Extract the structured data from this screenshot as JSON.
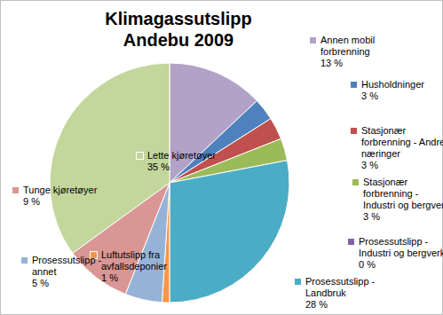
{
  "chart_data": {
    "type": "pie",
    "title": "Klimagassutslipp Andebu 2009",
    "categories": [
      "Annen mobil forbrenning",
      "Husholdninger",
      "Stasjonær forbrenning - Andre næringer",
      "Stasjonær forbrenning - Industri og bergverk",
      "Prosessutslipp - Industri og bergverk",
      "Prosessutslipp - Landbruk",
      "Luftutslipp fra avfallsdeponier",
      "Prosessutslipp - annet",
      "Tunge kjøretøyer",
      "Lette kjøretøyer"
    ],
    "values": [
      13,
      3,
      3,
      3,
      0,
      28,
      1,
      5,
      9,
      35
    ],
    "value_labels": [
      "13 %",
      "3 %",
      "3 %",
      "3 %",
      "0 %",
      "28 %",
      "1 %",
      "5 %",
      "9 %",
      "35 %"
    ],
    "colors": [
      "#b3a2c7",
      "#4f81bd",
      "#c0504d",
      "#9bbb59",
      "#8064a2",
      "#4bacc6",
      "#f79646",
      "#95b3d7",
      "#d99694",
      "#c3d69b"
    ],
    "data_labels": true
  }
}
